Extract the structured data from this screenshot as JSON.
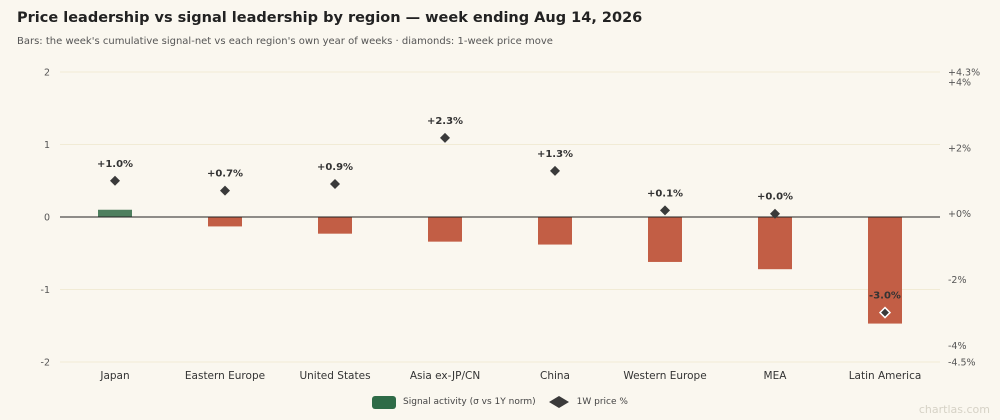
{
  "chart_data": {
    "type": "bar",
    "title": "Price leadership vs signal leadership by region — week ending Aug 14, 2026",
    "subtitle": "Bars: the week's cumulative signal-net vs each region's own year of weeks · diamonds: 1-week price move",
    "categories": [
      "Japan",
      "Eastern Europe",
      "United States",
      "Asia ex-JP/CN",
      "China",
      "Western Europe",
      "MEA",
      "Latin America"
    ],
    "series": [
      {
        "name": "Signal activity (σ vs 1Y norm)",
        "axis": "left",
        "values": [
          0.1,
          -0.13,
          -0.23,
          -0.34,
          -0.38,
          -0.62,
          -0.72,
          -1.47
        ]
      },
      {
        "name": "1W price %",
        "axis": "right",
        "values": [
          1.0,
          0.7,
          0.9,
          2.3,
          1.3,
          0.1,
          0.0,
          -3.0
        ],
        "labels": [
          "+1.0%",
          "+0.7%",
          "+0.9%",
          "+2.3%",
          "+1.3%",
          "+0.1%",
          "+0.0%",
          "-3.0%"
        ]
      }
    ],
    "y_left": {
      "ylim": [
        -2,
        2
      ],
      "ticks": [
        2,
        1,
        0,
        -1,
        -2
      ],
      "tick_labels": [
        "2",
        "1",
        "0",
        "-1",
        "-2"
      ]
    },
    "y_right": {
      "ylim": [
        -4.5,
        4.3
      ],
      "ticks": [
        4.3,
        4,
        2,
        0,
        -2,
        -4,
        -4.5
      ],
      "tick_labels": [
        "+4.3%",
        "+4%",
        "+2%",
        "+0%",
        "-2%",
        "-4%",
        "-4.5%"
      ]
    },
    "highlight_index": 7,
    "colors": {
      "positive": "#4e7f5e",
      "negative": "#c25e45",
      "legend_bar": "#2e6b47",
      "diamond": "#3a3a3a"
    },
    "grid": true,
    "legend_position": "bottom-center"
  },
  "watermark": "chartlas.com"
}
